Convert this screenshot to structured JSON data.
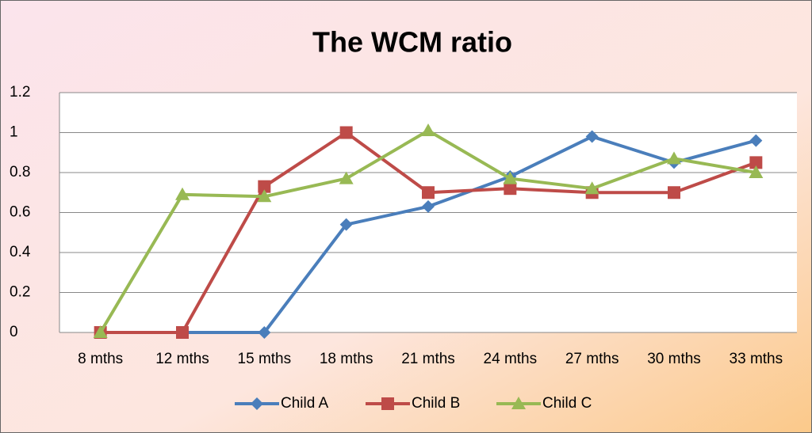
{
  "chart_data": {
    "type": "line",
    "title": "The WCM ratio",
    "categories": [
      "8 mths",
      "12 mths",
      "15 mths",
      "18 mths",
      "21 mths",
      "24 mths",
      "27 mths",
      "30 mths",
      "33 mths"
    ],
    "series": [
      {
        "name": "Child A",
        "color": "#4a7ebb",
        "marker": "diamond",
        "values": [
          0,
          0,
          0,
          0.54,
          0.63,
          0.78,
          0.98,
          0.85,
          0.96
        ]
      },
      {
        "name": "Child B",
        "color": "#be4b48",
        "marker": "square",
        "values": [
          0,
          0,
          0.73,
          1,
          0.7,
          0.72,
          0.7,
          0.7,
          0.85
        ]
      },
      {
        "name": "Child C",
        "color": "#98b954",
        "marker": "triangle",
        "values": [
          0,
          0.69,
          0.68,
          0.77,
          1.01,
          0.77,
          0.72,
          0.87,
          0.8
        ]
      }
    ],
    "ylim": [
      0,
      1.2
    ],
    "yticks": [
      0,
      0.2,
      0.4,
      0.6,
      0.8,
      1,
      1.2
    ],
    "grid": true,
    "legend": "bottom"
  }
}
